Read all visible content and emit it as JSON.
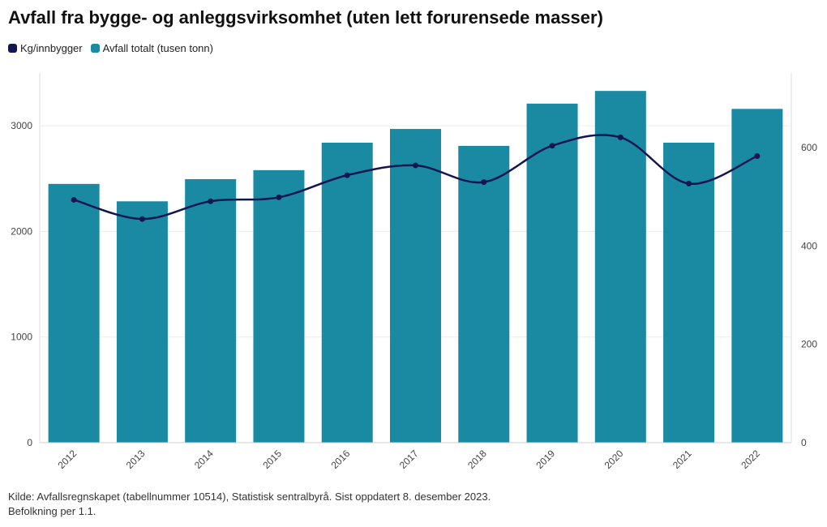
{
  "chart_data": {
    "type": "bar",
    "title": "Avfall fra bygge- og anleggsvirksomhet (uten lett forurensede masser)",
    "categories": [
      "2012",
      "2013",
      "2014",
      "2015",
      "2016",
      "2017",
      "2018",
      "2019",
      "2020",
      "2021",
      "2022"
    ],
    "series": [
      {
        "name": "Avfall totalt (tusen tonn)",
        "type": "bar",
        "axis": "left",
        "color": "#1a8aa3",
        "values": [
          2450,
          2285,
          2495,
          2580,
          2840,
          2970,
          2810,
          3210,
          3330,
          2840,
          3160
        ]
      },
      {
        "name": "Kg/innbygger",
        "type": "line",
        "axis": "right",
        "color": "#13174f",
        "values": [
          494,
          455,
          491,
          499,
          544,
          564,
          530,
          604,
          621,
          527,
          583
        ]
      }
    ],
    "y_left": {
      "ticks": [
        0,
        1000,
        2000,
        3000
      ],
      "range": [
        0,
        3500
      ]
    },
    "y_right": {
      "ticks": [
        0,
        200,
        400,
        600
      ],
      "range": [
        0,
        752
      ]
    },
    "grid": true,
    "legend_position": "top-left",
    "source": "Kilde: Avfallsregnskapet (tabellnummer 10514), Statistisk sentralbyrå. Sist oppdatert 8. desember 2023.",
    "note": "Befolkning per 1.1."
  }
}
